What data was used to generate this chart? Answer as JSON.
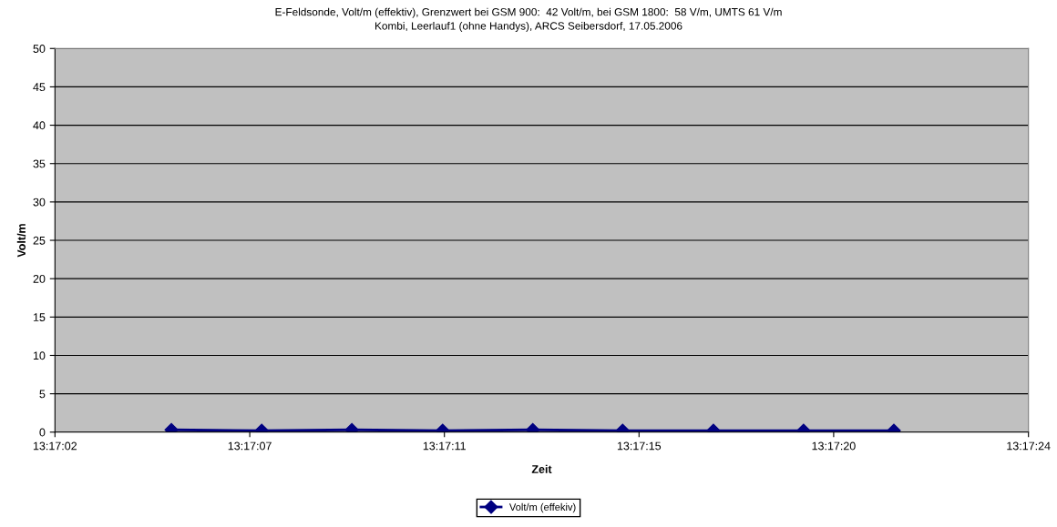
{
  "chart_data": {
    "type": "line",
    "title": "E-Feldsonde, Volt/m (effektiv), Grenzwert bei GSM 900:  42 Volt/m, bei GSM 1800:  58 V/m, UMTS 61 V/m\nKombi, Leerlauf1 (ohne Handys), ARCS Seibersdorf, 17.05.2006",
    "xlabel": "Zeit",
    "ylabel": "Volt/m",
    "x": [
      13.284675,
      13.285242,
      13.285808,
      13.286378,
      13.286944,
      13.287508,
      13.288078,
      13.288644,
      13.289211
    ],
    "series": [
      {
        "name": "Volt/m (effekiv)",
        "color": "#000080",
        "values": [
          0.3,
          0.2,
          0.3,
          0.2,
          0.3,
          0.2,
          0.2,
          0.2,
          0.2
        ]
      }
    ],
    "xlim": [
      13.283944,
      13.290056
    ],
    "xticks": [
      {
        "value": 13.283944,
        "label": "13:17:02"
      },
      {
        "value": 13.285167,
        "label": "13:17:07"
      },
      {
        "value": 13.286389,
        "label": "13:17:11"
      },
      {
        "value": 13.287611,
        "label": "13:17:15"
      },
      {
        "value": 13.288833,
        "label": "13:17:20"
      },
      {
        "value": 13.290056,
        "label": "13:17:24"
      }
    ],
    "ylim": [
      0,
      50
    ],
    "yticks": [
      0,
      5,
      10,
      15,
      20,
      25,
      30,
      35,
      40,
      45,
      50
    ],
    "grid": "y",
    "legend": "bottom",
    "marker": "diamond",
    "line_style": "solid"
  }
}
